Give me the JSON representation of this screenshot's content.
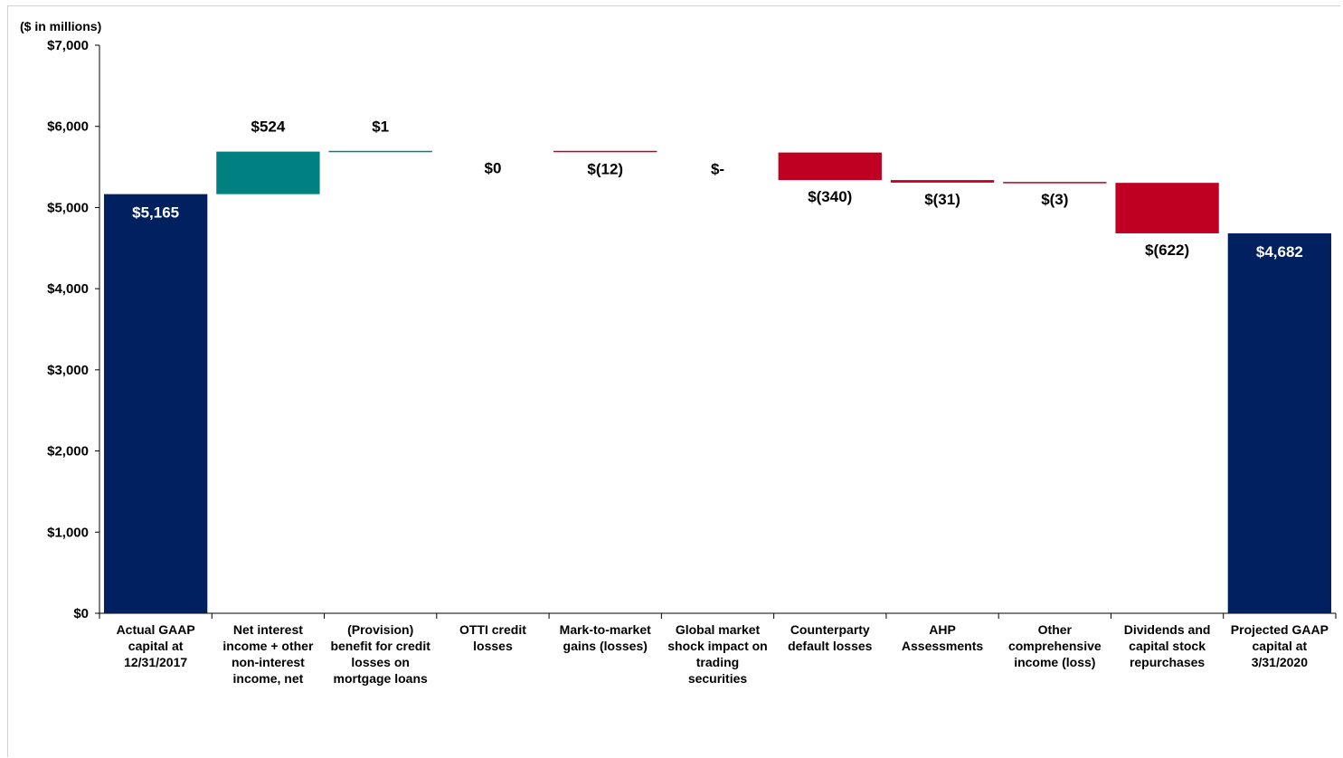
{
  "chart_data": {
    "type": "bar",
    "subtype": "waterfall",
    "unit_label": "($ in millions)",
    "ylim": [
      0,
      7000
    ],
    "y_ticks": [
      {
        "value": 0,
        "label": "$0"
      },
      {
        "value": 1000,
        "label": "$1,000"
      },
      {
        "value": 2000,
        "label": "$2,000"
      },
      {
        "value": 3000,
        "label": "$3,000"
      },
      {
        "value": 4000,
        "label": "$4,000"
      },
      {
        "value": 5000,
        "label": "$5,000"
      },
      {
        "value": 6000,
        "label": "$6,000"
      },
      {
        "value": 7000,
        "label": "$7,000"
      }
    ],
    "grid": false,
    "colors": {
      "total": "#002060",
      "increase": "#008080",
      "decrease": "#C00022"
    },
    "bars": [
      {
        "category": [
          "Actual GAAP",
          "capital at",
          "12/31/2017"
        ],
        "kind": "total",
        "start": 0,
        "end": 5165,
        "label": "$5,165"
      },
      {
        "category": [
          "Net interest",
          "income + other",
          "non-interest",
          "income, net"
        ],
        "kind": "increase",
        "start": 5165,
        "end": 5689,
        "label": "$524"
      },
      {
        "category": [
          "(Provision)",
          "benefit for credit",
          "losses on",
          "mortgage loans"
        ],
        "kind": "increase",
        "start": 5689,
        "end": 5690,
        "label": "$1"
      },
      {
        "category": [
          "OTTI credit",
          "losses"
        ],
        "kind": "none",
        "start": 5690,
        "end": 5690,
        "label": "$0"
      },
      {
        "category": [
          "Mark-to-market",
          "gains (losses)"
        ],
        "kind": "decrease",
        "start": 5690,
        "end": 5678,
        "label": "$(12)"
      },
      {
        "category": [
          "Global market",
          "shock impact on",
          "trading",
          "securities"
        ],
        "kind": "none",
        "start": 5678,
        "end": 5678,
        "label": "$-"
      },
      {
        "category": [
          "Counterparty",
          "default losses"
        ],
        "kind": "decrease",
        "start": 5678,
        "end": 5338,
        "label": "$(340)"
      },
      {
        "category": [
          "AHP",
          "Assessments"
        ],
        "kind": "decrease",
        "start": 5338,
        "end": 5307,
        "label": "$(31)"
      },
      {
        "category": [
          "Other",
          "comprehensive",
          "income (loss)"
        ],
        "kind": "decrease",
        "start": 5307,
        "end": 5304,
        "label": "$(3)"
      },
      {
        "category": [
          "Dividends and",
          "capital stock",
          "repurchases"
        ],
        "kind": "decrease",
        "start": 5304,
        "end": 4682,
        "label": "$(622)"
      },
      {
        "category": [
          "Projected GAAP",
          "capital at",
          "3/31/2020"
        ],
        "kind": "total",
        "start": 0,
        "end": 4682,
        "label": "$4,682"
      }
    ]
  }
}
